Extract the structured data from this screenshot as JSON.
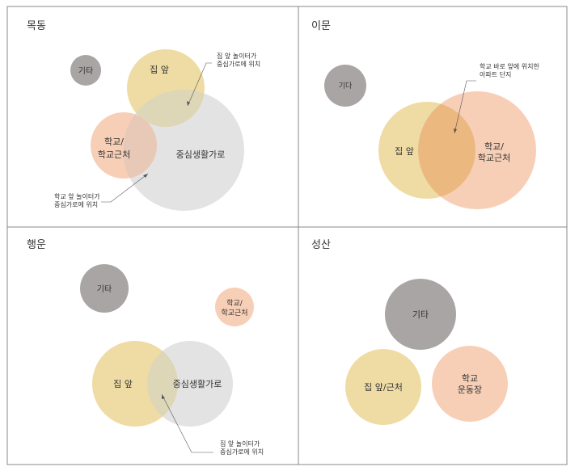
{
  "colors": {
    "gray": "#aaa5a5",
    "yellow": "#efdca4",
    "peach": "#f7cfb7",
    "light": "#e4e3e3",
    "overlap_yellow_light": "#ddd7b8",
    "overlap_peach_light": "#e8c9b8",
    "overlap_yellow_peach": "#ebb980",
    "border": "#888888",
    "pointer": "#555555"
  },
  "panels": [
    {
      "title": "목동",
      "circles": [
        {
          "label": "기타"
        },
        {
          "label": "집 앞"
        },
        {
          "label": "중심생활가로"
        },
        {
          "label": "학교/",
          "label2": "학교근처"
        }
      ],
      "notes": [
        {
          "line1": "집 앞 놀이터가",
          "line2": "중심가로에 위치"
        },
        {
          "line1": "학교 앞 놀이터가",
          "line2": "중심가로에 위치"
        }
      ]
    },
    {
      "title": "이문",
      "circles": [
        {
          "label": "기다"
        },
        {
          "label": "집 앞"
        },
        {
          "label": "학교/",
          "label2": "학교근처"
        }
      ],
      "notes": [
        {
          "line1": "학교 바로 앞에 위치한",
          "line2": "아파트 단지"
        }
      ]
    },
    {
      "title": "행운",
      "circles": [
        {
          "label": "기타"
        },
        {
          "label": "학교/",
          "label2": "학교근처"
        },
        {
          "label": "집 앞"
        },
        {
          "label": "중심생활가로"
        }
      ],
      "notes": [
        {
          "line1": "집 앞 놀이터가",
          "line2": "중심가로에 위치"
        }
      ]
    },
    {
      "title": "성산",
      "circles": [
        {
          "label": "기타"
        },
        {
          "label": "집 앞/근처"
        },
        {
          "label": "학교",
          "label2": "운동장"
        }
      ],
      "notes": []
    }
  ]
}
